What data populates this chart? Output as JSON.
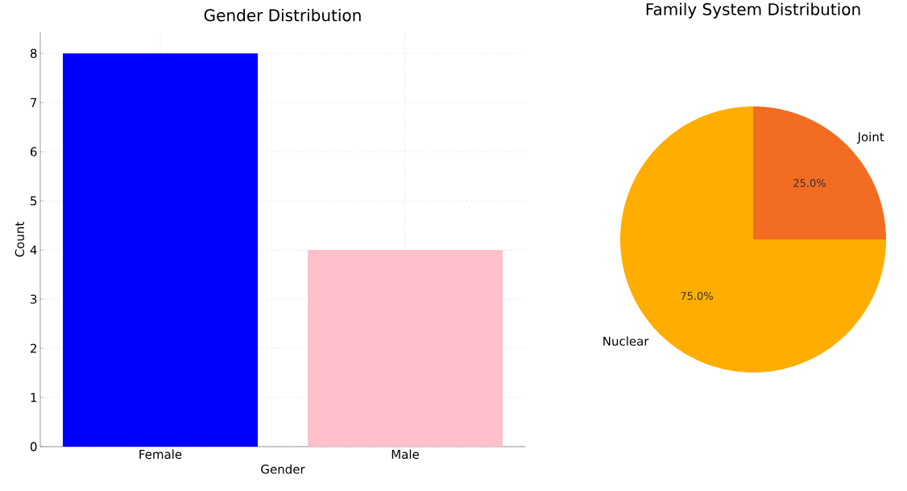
{
  "chart_data": [
    {
      "type": "bar",
      "title": "Gender Distribution",
      "xlabel": "Gender",
      "ylabel": "Count",
      "categories": [
        "Female",
        "Male"
      ],
      "values": [
        8,
        4
      ],
      "colors": [
        "#0000ff",
        "#ffc0cb"
      ],
      "ylim": [
        0,
        8.43
      ],
      "yticks": [
        0,
        1,
        2,
        3,
        4,
        5,
        6,
        7,
        8
      ],
      "grid": true
    },
    {
      "type": "pie",
      "title": "Family System Distribution",
      "categories": [
        "Joint",
        "Nuclear"
      ],
      "values": [
        25,
        75
      ],
      "colors": [
        "#f26c22",
        "#ffae00"
      ],
      "value_labels": [
        "25.0%",
        "75.0%"
      ]
    }
  ]
}
